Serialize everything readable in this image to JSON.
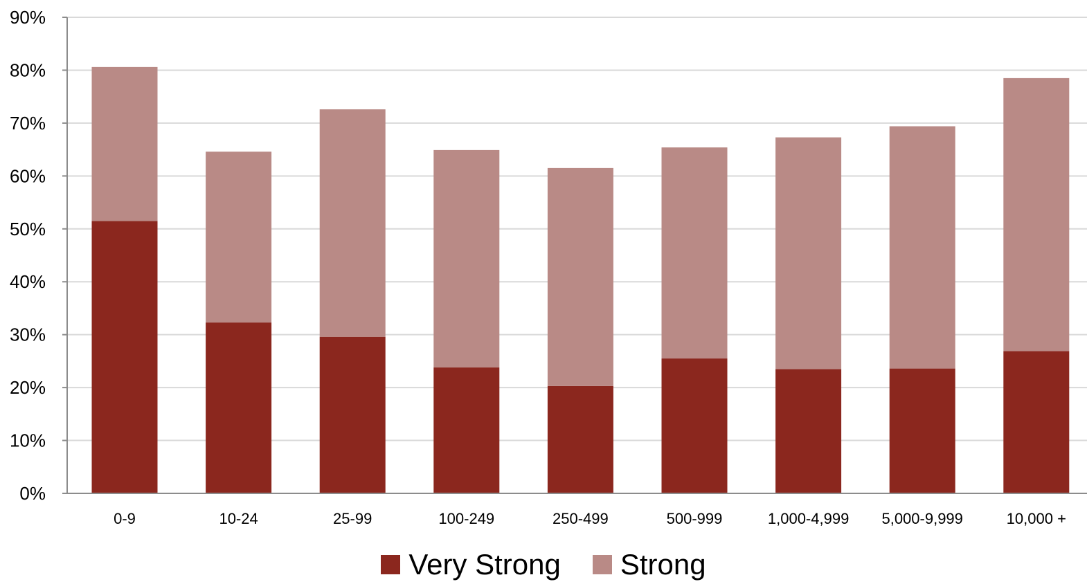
{
  "chart_data": {
    "type": "bar",
    "stacked": true,
    "categories": [
      "0-9",
      "10-24",
      "25-99",
      "100-249",
      "250-499",
      "500-999",
      "1,000-4,999",
      "5,000-9,999",
      "10,000 +"
    ],
    "series": [
      {
        "name": "Very Strong",
        "color": "#8b271e",
        "values": [
          51.5,
          32.3,
          29.6,
          23.8,
          20.3,
          25.5,
          23.5,
          23.6,
          26.9
        ]
      },
      {
        "name": "Strong",
        "color": "#b98a86",
        "values": [
          29.1,
          32.3,
          43.0,
          41.1,
          41.2,
          39.9,
          43.8,
          45.8,
          51.6
        ]
      }
    ],
    "ylim": [
      0,
      90
    ],
    "yticks": [
      0,
      10,
      20,
      30,
      40,
      50,
      60,
      70,
      80,
      90
    ],
    "ytick_labels": [
      "0%",
      "10%",
      "20%",
      "30%",
      "40%",
      "50%",
      "60%",
      "70%",
      "80%",
      "90%"
    ],
    "grid": true,
    "legend_position": "bottom-center"
  }
}
